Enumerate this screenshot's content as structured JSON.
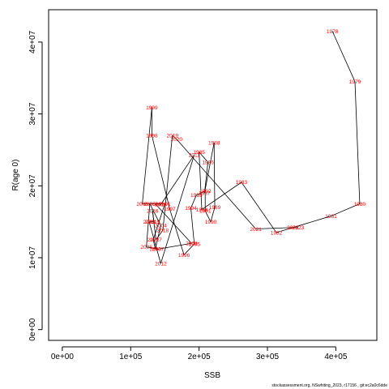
{
  "chart_data": {
    "type": "line",
    "xlabel": "SSB",
    "ylabel": "R(age 0)",
    "xlim": [
      -20000,
      460000
    ],
    "ylim": [
      -1500000,
      44500000
    ],
    "xticks": [
      0,
      100000,
      200000,
      300000,
      400000
    ],
    "xtick_labels": [
      "0e+00",
      "1e+05",
      "2e+05",
      "3e+05",
      "4e+05"
    ],
    "yticks": [
      0,
      10000000,
      20000000,
      30000000,
      40000000
    ],
    "ytick_labels": [
      "0e+00",
      "1e+07",
      "2e+07",
      "3e+07",
      "4e+07"
    ],
    "line_color": "#000000",
    "label_color": "#ff0000",
    "points": [
      {
        "year": "1978",
        "x": 395000,
        "y": 41500000
      },
      {
        "year": "1979",
        "x": 428000,
        "y": 34500000
      },
      {
        "year": "1980",
        "x": 435000,
        "y": 17500000
      },
      {
        "year": "1981",
        "x": 393000,
        "y": 15800000
      },
      {
        "year": "1982",
        "x": 313000,
        "y": 13500000
      },
      {
        "year": "1983",
        "x": 262000,
        "y": 20500000
      },
      {
        "year": "1984",
        "x": 204000,
        "y": 16700000
      },
      {
        "year": "1985",
        "x": 200000,
        "y": 24700000
      },
      {
        "year": "1986",
        "x": 213000,
        "y": 23300000
      },
      {
        "year": "1987",
        "x": 208000,
        "y": 19000000
      },
      {
        "year": "1988",
        "x": 222000,
        "y": 26000000
      },
      {
        "year": "1989",
        "x": 223000,
        "y": 17000000
      },
      {
        "year": "1990",
        "x": 217000,
        "y": 15000000
      },
      {
        "year": "1991",
        "x": 209000,
        "y": 16500000
      },
      {
        "year": "1992",
        "x": 209000,
        "y": 19300000
      },
      {
        "year": "1993",
        "x": 196000,
        "y": 18700000
      },
      {
        "year": "1994",
        "x": 188000,
        "y": 16900000
      },
      {
        "year": "1995",
        "x": 193000,
        "y": 11900000
      },
      {
        "year": "1996",
        "x": 178000,
        "y": 10400000
      },
      {
        "year": "1997",
        "x": 157000,
        "y": 16800000
      },
      {
        "year": "1998",
        "x": 131000,
        "y": 27000000
      },
      {
        "year": "1999",
        "x": 131000,
        "y": 30900000
      },
      {
        "year": "2000",
        "x": 117000,
        "y": 17500000
      },
      {
        "year": "2001",
        "x": 150000,
        "y": 17500000
      },
      {
        "year": "2002",
        "x": 133000,
        "y": 12500000
      },
      {
        "year": "2003",
        "x": 136000,
        "y": 11200000
      },
      {
        "year": "2004",
        "x": 144000,
        "y": 14500000
      },
      {
        "year": "2005",
        "x": 128000,
        "y": 17500000
      },
      {
        "year": "2006",
        "x": 123000,
        "y": 11500000
      },
      {
        "year": "2007",
        "x": 140000,
        "y": 11200000
      },
      {
        "year": "2008",
        "x": 189000,
        "y": 12000000
      },
      {
        "year": "2009",
        "x": 136000,
        "y": 17500000
      },
      {
        "year": "2010",
        "x": 144000,
        "y": 17400000
      },
      {
        "year": "2011",
        "x": 193000,
        "y": 24300000
      },
      {
        "year": "2012",
        "x": 144000,
        "y": 9200000
      },
      {
        "year": "2013",
        "x": 127000,
        "y": 15000000
      },
      {
        "year": "2014",
        "x": 129000,
        "y": 15000000
      },
      {
        "year": "2015",
        "x": 134000,
        "y": 15000000
      },
      {
        "year": "2016",
        "x": 132000,
        "y": 16500000
      },
      {
        "year": "2017",
        "x": 137000,
        "y": 12500000
      },
      {
        "year": "2018",
        "x": 147000,
        "y": 13800000
      },
      {
        "year": "2019",
        "x": 161000,
        "y": 27000000
      },
      {
        "year": "2020",
        "x": 167000,
        "y": 26500000
      },
      {
        "year": "2021",
        "x": 283000,
        "y": 14000000
      },
      {
        "year": "2022",
        "x": 337000,
        "y": 14200000
      },
      {
        "year": "2023",
        "x": 345000,
        "y": 14200000
      }
    ]
  },
  "footer": "stockassessment.org, NSwhiting_2023, r17156 , git:ec2a0c6dde"
}
